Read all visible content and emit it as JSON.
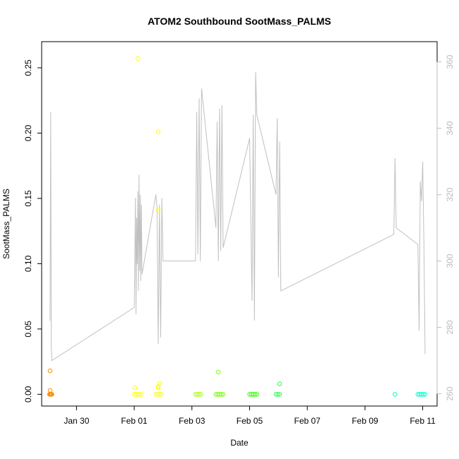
{
  "chart_data": {
    "type": "scatter",
    "title": "ATOM2 Southbound SootMass_PALMS",
    "xlabel": "Date",
    "ylabel": "SootMass_PALMS",
    "xlim": [
      "2017-01-28T19:00",
      "2017-02-11T12:00"
    ],
    "ylim": [
      -0.009,
      0.27
    ],
    "x_ticks": [
      {
        "date": "2017-01-30",
        "label": "Jan 30"
      },
      {
        "date": "2017-02-01",
        "label": "Feb 01"
      },
      {
        "date": "2017-02-03",
        "label": "Feb 03"
      },
      {
        "date": "2017-02-05",
        "label": "Feb 05"
      },
      {
        "date": "2017-02-07",
        "label": "Feb 07"
      },
      {
        "date": "2017-02-09",
        "label": "Feb 09"
      },
      {
        "date": "2017-02-11",
        "label": "Feb 11"
      }
    ],
    "y_ticks": [
      0.0,
      0.05,
      0.1,
      0.15,
      0.2,
      0.25
    ],
    "y_tick_labels": [
      "0.00",
      "0.05",
      "0.10",
      "0.15",
      "0.20",
      "0.25"
    ],
    "right_axis": {
      "ylim": [
        256.3,
        366.1
      ],
      "ticks": [
        260,
        280,
        300,
        320,
        340,
        360
      ],
      "tick_labels": [
        "260",
        "280",
        "300",
        "320",
        "340",
        "360"
      ],
      "color": "#bbbbbb"
    },
    "line_color": "#c0c0c0",
    "line_series": [
      [
        "2017-01-29T02:00",
        282
      ],
      [
        "2017-01-29T02:30",
        345
      ],
      [
        "2017-01-29T03:00",
        274
      ],
      [
        "2017-01-29T03:30",
        270
      ],
      [
        "2017-02-01T00:00",
        286
      ],
      [
        "2017-02-01T01:00",
        319
      ],
      [
        "2017-02-01T01:30",
        284
      ],
      [
        "2017-02-01T02:00",
        313
      ],
      [
        "2017-02-01T02:30",
        299
      ],
      [
        "2017-02-01T03:00",
        321
      ],
      [
        "2017-02-01T03:30",
        291
      ],
      [
        "2017-02-01T04:00",
        326
      ],
      [
        "2017-02-01T04:30",
        297
      ],
      [
        "2017-02-01T05:00",
        320
      ],
      [
        "2017-02-01T05:30",
        294
      ],
      [
        "2017-02-01T06:00",
        317
      ],
      [
        "2017-02-01T06:30",
        296
      ],
      [
        "2017-02-01T18:00",
        320
      ],
      [
        "2017-02-01T19:00",
        316
      ],
      [
        "2017-02-01T20:00",
        275
      ],
      [
        "2017-02-01T21:00",
        317
      ],
      [
        "2017-02-01T22:00",
        277
      ],
      [
        "2017-02-01T23:00",
        319
      ],
      [
        "2017-02-02T00:00",
        300
      ],
      [
        "2017-02-03T03:00",
        300
      ],
      [
        "2017-02-03T04:00",
        345
      ],
      [
        "2017-02-03T05:00",
        302
      ],
      [
        "2017-02-03T06:00",
        349
      ],
      [
        "2017-02-03T07:00",
        300
      ],
      [
        "2017-02-03T08:00",
        352
      ],
      [
        "2017-02-03T20:00",
        310
      ],
      [
        "2017-02-03T21:00",
        342
      ],
      [
        "2017-02-03T22:00",
        300
      ],
      [
        "2017-02-03T23:00",
        346
      ],
      [
        "2017-02-04T00:00",
        303
      ],
      [
        "2017-02-04T01:00",
        347
      ],
      [
        "2017-02-04T02:00",
        304
      ],
      [
        "2017-02-05T00:00",
        337
      ],
      [
        "2017-02-05T02:00",
        288
      ],
      [
        "2017-02-05T03:00",
        344
      ],
      [
        "2017-02-05T04:00",
        282
      ],
      [
        "2017-02-05T05:00",
        357
      ],
      [
        "2017-02-05T06:00",
        344
      ],
      [
        "2017-02-05T22:00",
        320
      ],
      [
        "2017-02-05T23:00",
        343
      ],
      [
        "2017-02-06T00:00",
        295
      ],
      [
        "2017-02-06T01:00",
        336
      ],
      [
        "2017-02-06T02:00",
        291
      ],
      [
        "2017-02-10T00:00",
        308
      ],
      [
        "2017-02-10T01:00",
        331
      ],
      [
        "2017-02-10T02:00",
        310
      ],
      [
        "2017-02-10T20:00",
        305
      ],
      [
        "2017-02-10T21:00",
        279
      ],
      [
        "2017-02-10T22:00",
        324
      ],
      [
        "2017-02-10T23:00",
        318
      ],
      [
        "2017-02-11T00:00",
        330
      ],
      [
        "2017-02-11T01:00",
        305
      ],
      [
        "2017-02-11T02:00",
        272
      ]
    ],
    "points": [
      {
        "x": "2017-01-29T02:00",
        "y": 0.018,
        "color": "#ff8c00"
      },
      {
        "x": "2017-01-29T02:00",
        "y": 0.003,
        "color": "#ff8c00"
      },
      {
        "x": "2017-01-29T01:30",
        "y": 0.0,
        "color": "#ff8c00"
      },
      {
        "x": "2017-01-29T02:00",
        "y": 0.0,
        "color": "#ff8c00"
      },
      {
        "x": "2017-01-29T02:30",
        "y": 0.0,
        "color": "#ff8c00"
      },
      {
        "x": "2017-01-29T03:00",
        "y": 0.0,
        "color": "#ff8c00"
      },
      {
        "x": "2017-01-29T03:30",
        "y": 0.0,
        "color": "#ff8c00"
      },
      {
        "x": "2017-02-01T03:00",
        "y": 0.257,
        "color": "#ffff00"
      },
      {
        "x": "2017-02-01T00:30",
        "y": 0.005,
        "color": "#ffff00"
      },
      {
        "x": "2017-02-01T00:00",
        "y": 0.0,
        "color": "#ffff00"
      },
      {
        "x": "2017-02-01T01:30",
        "y": 0.0,
        "color": "#ffff00"
      },
      {
        "x": "2017-02-01T03:00",
        "y": 0.0,
        "color": "#ffff00"
      },
      {
        "x": "2017-02-01T04:30",
        "y": 0.0,
        "color": "#ffff00"
      },
      {
        "x": "2017-02-01T06:00",
        "y": 0.0,
        "color": "#ffff00"
      },
      {
        "x": "2017-02-01T20:00",
        "y": 0.201,
        "color": "#ffff00"
      },
      {
        "x": "2017-02-01T20:00",
        "y": 0.141,
        "color": "#ffff00"
      },
      {
        "x": "2017-02-01T21:00",
        "y": 0.008,
        "color": "#ffff00"
      },
      {
        "x": "2017-02-01T20:00",
        "y": 0.006,
        "color": "#ffff00"
      },
      {
        "x": "2017-02-01T20:00",
        "y": 0.005,
        "color": "#ffff00"
      },
      {
        "x": "2017-02-01T18:00",
        "y": 0.0,
        "color": "#ffff00"
      },
      {
        "x": "2017-02-01T19:30",
        "y": 0.0,
        "color": "#ffff00"
      },
      {
        "x": "2017-02-01T21:00",
        "y": 0.0,
        "color": "#ffff00"
      },
      {
        "x": "2017-02-01T22:30",
        "y": 0.0,
        "color": "#ffff00"
      },
      {
        "x": "2017-02-03T03:00",
        "y": 0.0,
        "color": "#aaff00"
      },
      {
        "x": "2017-02-03T04:30",
        "y": 0.0,
        "color": "#aaff00"
      },
      {
        "x": "2017-02-03T06:00",
        "y": 0.0,
        "color": "#aaff00"
      },
      {
        "x": "2017-02-03T07:30",
        "y": 0.0,
        "color": "#aaff00"
      },
      {
        "x": "2017-02-03T22:00",
        "y": 0.017,
        "color": "#77ff00"
      },
      {
        "x": "2017-02-03T20:00",
        "y": 0.0,
        "color": "#77ff00"
      },
      {
        "x": "2017-02-03T21:30",
        "y": 0.0,
        "color": "#77ff00"
      },
      {
        "x": "2017-02-03T23:00",
        "y": 0.0,
        "color": "#77ff00"
      },
      {
        "x": "2017-02-04T00:30",
        "y": 0.0,
        "color": "#77ff00"
      },
      {
        "x": "2017-02-04T02:00",
        "y": 0.0,
        "color": "#77ff00"
      },
      {
        "x": "2017-02-05T00:00",
        "y": 0.0,
        "color": "#33ff00"
      },
      {
        "x": "2017-02-05T01:30",
        "y": 0.0,
        "color": "#33ff00"
      },
      {
        "x": "2017-02-05T03:00",
        "y": 0.0,
        "color": "#33ff00"
      },
      {
        "x": "2017-02-05T04:30",
        "y": 0.0,
        "color": "#33ff00"
      },
      {
        "x": "2017-02-05T06:00",
        "y": 0.0,
        "color": "#33ff00"
      },
      {
        "x": "2017-02-06T01:00",
        "y": 0.008,
        "color": "#22ff44"
      },
      {
        "x": "2017-02-05T22:00",
        "y": 0.0,
        "color": "#22ff44"
      },
      {
        "x": "2017-02-05T23:30",
        "y": 0.0,
        "color": "#22ff44"
      },
      {
        "x": "2017-02-06T01:00",
        "y": 0.0,
        "color": "#22ff44"
      },
      {
        "x": "2017-02-10T01:00",
        "y": 0.0,
        "color": "#00ffbb"
      },
      {
        "x": "2017-02-10T20:00",
        "y": 0.0,
        "color": "#00ffcc"
      },
      {
        "x": "2017-02-10T21:30",
        "y": 0.0,
        "color": "#00ffcc"
      },
      {
        "x": "2017-02-10T23:00",
        "y": 0.0,
        "color": "#00ffcc"
      },
      {
        "x": "2017-02-11T00:30",
        "y": 0.0,
        "color": "#00ffcc"
      },
      {
        "x": "2017-02-11T02:00",
        "y": 0.0,
        "color": "#00ffcc"
      }
    ]
  }
}
